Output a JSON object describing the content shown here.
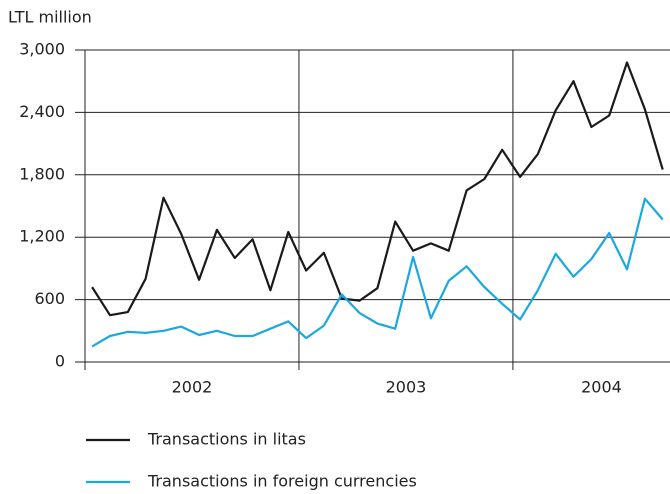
{
  "chart_data": {
    "type": "line",
    "y_label": "LTL million",
    "categories": [
      null,
      null,
      null,
      null,
      null,
      null,
      null,
      null,
      null,
      null,
      null,
      null,
      null,
      null,
      null,
      null,
      null,
      null,
      null,
      null,
      null,
      null,
      null,
      null,
      null,
      null,
      null,
      null,
      null,
      null,
      null,
      null,
      null
    ],
    "year_labels": [
      "2002",
      "2003",
      "2004"
    ],
    "series": [
      {
        "name": "Transactions in litas",
        "color": "#1a1a1a",
        "values": [
          720,
          450,
          480,
          800,
          1580,
          1230,
          790,
          1270,
          1000,
          1180,
          690,
          1250,
          880,
          1050,
          610,
          590,
          710,
          1350,
          1070,
          1140,
          1070,
          1650,
          1760,
          2040,
          1780,
          2000,
          2420,
          2700,
          2260,
          2370,
          2880,
          2430,
          1850
        ]
      },
      {
        "name": "Transactions in foreign currencies",
        "color": "#1aa8e0",
        "values": [
          150,
          250,
          290,
          280,
          300,
          340,
          260,
          300,
          250,
          250,
          320,
          390,
          230,
          350,
          650,
          470,
          370,
          320,
          1010,
          420,
          780,
          920,
          720,
          560,
          410,
          690,
          1040,
          820,
          990,
          1240,
          890,
          1570,
          1370
        ]
      }
    ],
    "ylim": [
      0,
      3000
    ],
    "yticks": [
      0,
      600,
      {
        "value": 1200,
        "label": "1,200"
      },
      {
        "value": 1800,
        "label": "1,800"
      },
      {
        "value": 2400,
        "label": "2,400"
      },
      {
        "value": 3000,
        "label": "3,000"
      }
    ],
    "grid": true
  }
}
